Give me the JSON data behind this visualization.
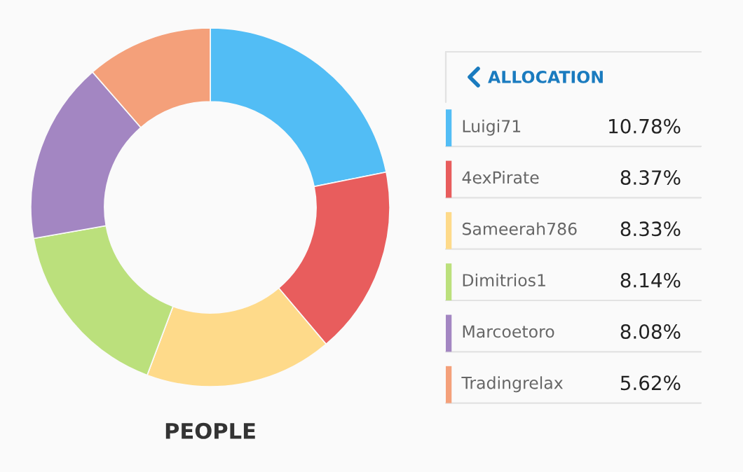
{
  "chart_data": {
    "type": "donut",
    "xlabel": "PEOPLE",
    "legend_title": "ALLOCATION",
    "legend": "right",
    "categories": [
      "Luigi71",
      "4exPirate",
      "Sameerah786",
      "Dimitrios1",
      "Marcoetoro",
      "Tradingrelax"
    ],
    "values": [
      10.78,
      8.37,
      8.33,
      8.14,
      8.08,
      5.62
    ],
    "value_labels": [
      "10.78%",
      "8.37%",
      "8.33%",
      "8.14%",
      "8.08%",
      "5.62%"
    ],
    "colors": [
      "#52bdf5",
      "#e85d5d",
      "#feda8a",
      "#bbe07c",
      "#a386c2",
      "#f4a07a"
    ]
  }
}
